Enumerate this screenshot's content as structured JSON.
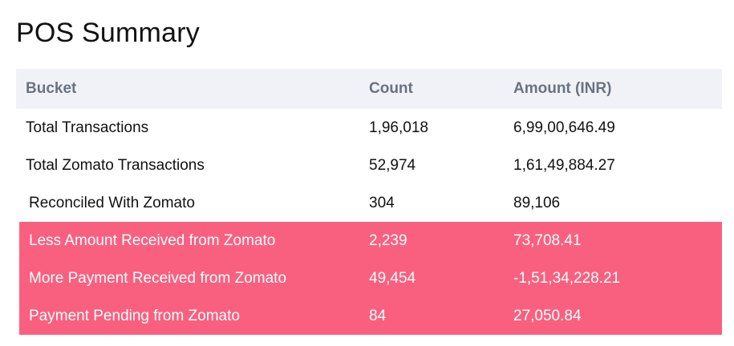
{
  "title": "POS Summary",
  "table": {
    "headers": {
      "bucket": "Bucket",
      "count": "Count",
      "amount": "Amount (INR)"
    },
    "rows": [
      {
        "bucket": "Total Transactions",
        "count": "1,96,018",
        "amount": "6,99,00,646.49"
      },
      {
        "bucket": "Total Zomato Transactions",
        "count": "52,974",
        "amount": "1,61,49,884.27"
      },
      {
        "bucket": "Reconciled With Zomato",
        "count": "304",
        "amount": "89,106"
      },
      {
        "bucket": "Less Amount Received from Zomato",
        "count": "2,239",
        "amount": "73,708.41"
      },
      {
        "bucket": "More Payment Received from Zomato",
        "count": "49,454",
        "amount": "-1,51,34,228.21"
      },
      {
        "bucket": "Payment Pending from Zomato",
        "count": "84",
        "amount": "27,050.84"
      }
    ]
  },
  "colors": {
    "highlight": "#f9607f",
    "header_bg": "#f1f2f8",
    "header_text": "#6b7280"
  }
}
